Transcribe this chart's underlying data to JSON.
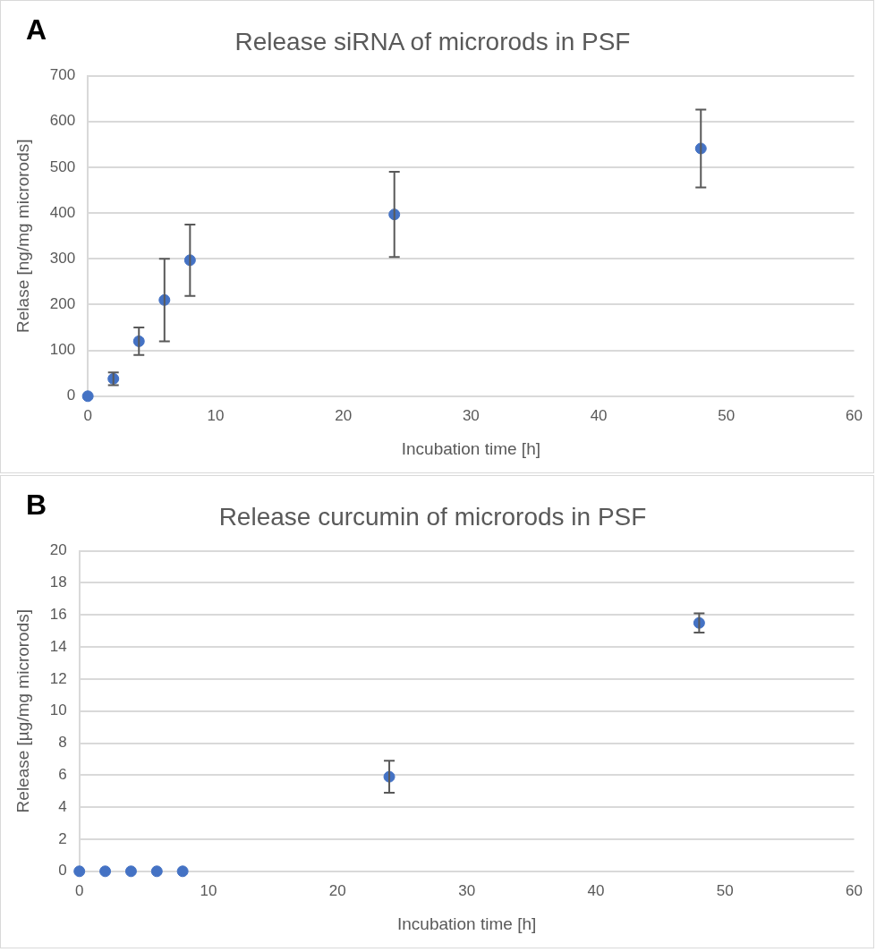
{
  "chart_data": [
    {
      "type": "scatter",
      "title": "Release siRNA of microrods in PSF",
      "xlabel": "Incubation time [h]",
      "ylabel": "Relase [ng/mg microrods]",
      "annotations": [
        "A"
      ],
      "x": [
        0,
        2,
        4,
        6,
        8,
        24,
        48
      ],
      "series": [
        {
          "color": "#4472c4",
          "values": [
            0,
            38,
            120,
            210,
            297,
            397,
            541
          ],
          "errors": [
            null,
            14,
            30,
            90,
            78,
            93,
            85
          ]
        }
      ],
      "xlim": [
        0,
        60
      ],
      "xticks": [
        0,
        10,
        20,
        30,
        40,
        50,
        60
      ],
      "ylim": [
        0,
        700
      ],
      "yticks": [
        0,
        100,
        200,
        300,
        400,
        500,
        600,
        700
      ],
      "grid": "y",
      "marker": "circle"
    },
    {
      "type": "scatter",
      "title": "Release curcumin of microrods in PSF",
      "xlabel": "Incubation time [h]",
      "ylabel": "Release [µg/mg microrods]",
      "annotations": [
        "B"
      ],
      "x": [
        0,
        2,
        4,
        6,
        8,
        24,
        48
      ],
      "series": [
        {
          "color": "#4472c4",
          "values": [
            0,
            0,
            0,
            0,
            0,
            5.9,
            15.5
          ],
          "errors": [
            null,
            null,
            null,
            null,
            null,
            1.0,
            0.6
          ]
        }
      ],
      "xlim": [
        0,
        60
      ],
      "xticks": [
        0,
        10,
        20,
        30,
        40,
        50,
        60
      ],
      "ylim": [
        0,
        20
      ],
      "yticks": [
        0,
        2,
        4,
        6,
        8,
        10,
        12,
        14,
        16,
        18,
        20
      ],
      "grid": "y",
      "marker": "circle"
    }
  ]
}
